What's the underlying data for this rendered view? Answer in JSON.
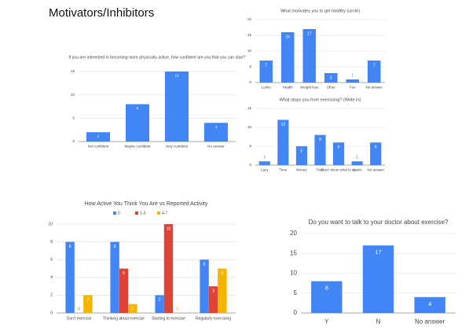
{
  "title": "Motivators/Inhibitors",
  "chart_data": [
    {
      "type": "bar",
      "title": "If you are interested in becoming more physically active, how confident are you that you can start?",
      "categories": [
        "Not confident",
        "Maybe confident",
        "Very confident",
        "No answer"
      ],
      "values": [
        2,
        8,
        15,
        4
      ],
      "color": "#4285f4",
      "ylim": [
        0,
        16
      ],
      "yticks": [
        0,
        5,
        10,
        15
      ],
      "grid": true
    },
    {
      "type": "bar",
      "title": "What motivates you to get healthy (circle)",
      "categories": [
        "Looks",
        "Health",
        "Weight loss",
        "Other",
        "Fun",
        "No answer"
      ],
      "values": [
        7,
        16,
        17,
        3,
        1,
        7
      ],
      "color": "#4285f4",
      "ylim": [
        0,
        20
      ],
      "yticks": [
        0,
        5,
        10,
        15,
        20
      ],
      "grid": true
    },
    {
      "type": "bar",
      "title": "What stops you from exercising? (Write in)",
      "categories": [
        "Lazy",
        "Time",
        "Money",
        "Pain",
        "Don't know what to do",
        "Looks",
        "No answer"
      ],
      "values": [
        1,
        12,
        5,
        8,
        6,
        1,
        6
      ],
      "color": "#4285f4",
      "ylim": [
        0,
        15
      ],
      "yticks": [
        0,
        5,
        10,
        15
      ],
      "grid": true
    },
    {
      "type": "bar",
      "title": "How Active You Think You Are vs Reported Activity",
      "categories": [
        "Don't exercise",
        "Thinking about exercise",
        "Starting to exercise",
        "Regularly exercising"
      ],
      "series": [
        {
          "name": "0",
          "color": "#4285f4",
          "values": [
            8,
            8,
            2,
            6
          ]
        },
        {
          "name": "1-3",
          "color": "#db4437",
          "values": [
            0,
            5,
            10,
            3
          ]
        },
        {
          "name": "4-7",
          "color": "#f4b400",
          "values": [
            2,
            1,
            0,
            5
          ]
        }
      ],
      "ylim": [
        0,
        10
      ],
      "yticks": [
        0,
        2,
        4,
        6,
        8,
        10
      ],
      "grid": true,
      "legend": "top"
    },
    {
      "type": "bar",
      "title": "Do you want to talk to your doctor about exercise?",
      "categories": [
        "Y",
        "N",
        "No answer"
      ],
      "values": [
        8,
        17,
        4
      ],
      "color": "#4285f4",
      "ylim": [
        0,
        20
      ],
      "yticks": [
        0,
        5,
        10,
        15,
        20
      ],
      "grid": true
    }
  ]
}
